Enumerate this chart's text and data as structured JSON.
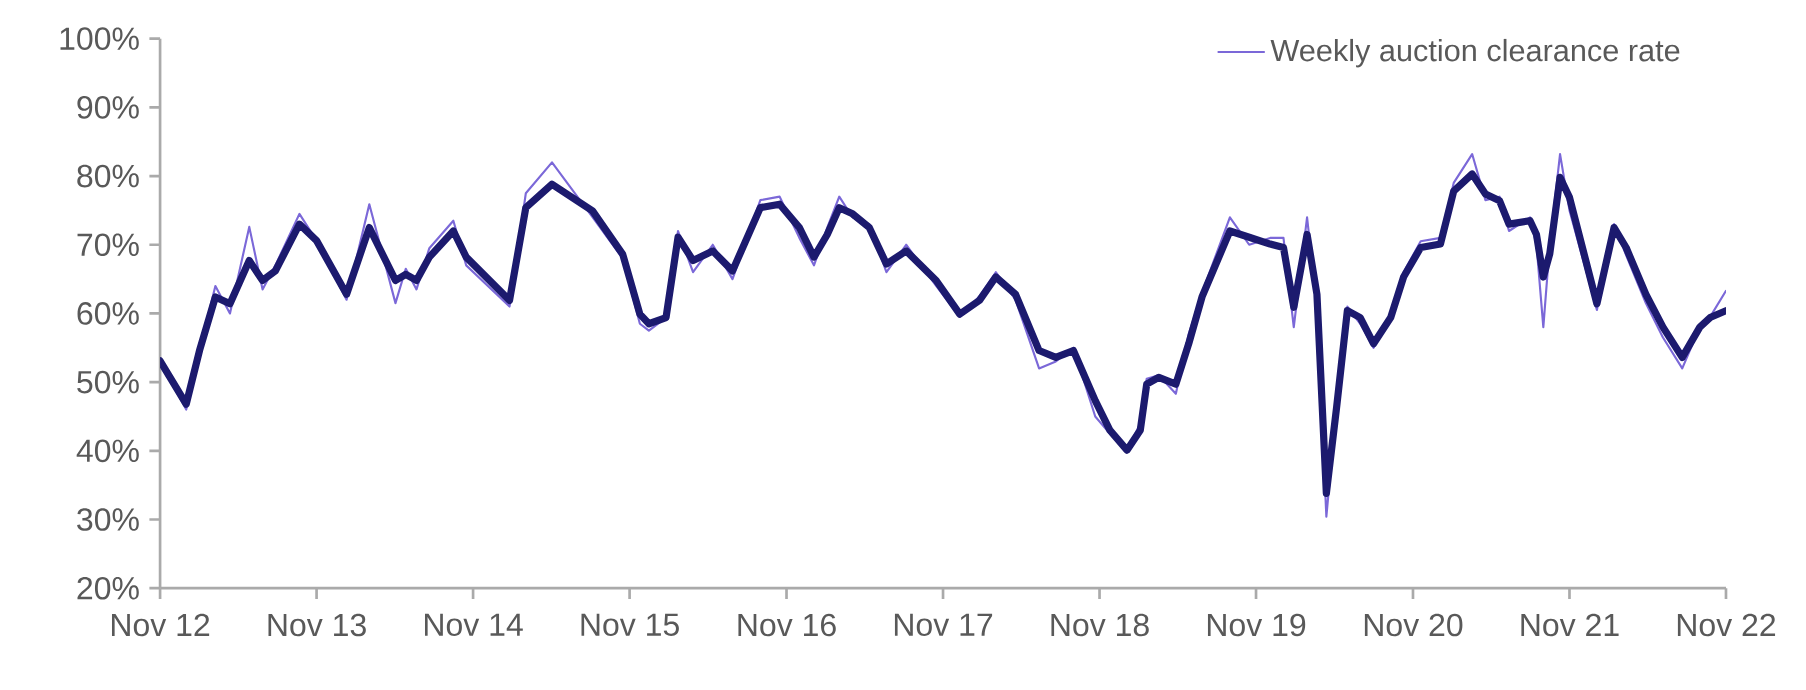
{
  "chart_data": {
    "type": "line",
    "legend": "top right",
    "grid": false,
    "marker": "none",
    "line_style": "solid",
    "xlim": [
      "2012-11-01",
      "2022-11-01"
    ],
    "xticks": [
      {
        "value": "2012-11-01",
        "label": "Nov 12"
      },
      {
        "value": "2013-11-01",
        "label": "Nov 13"
      },
      {
        "value": "2014-11-01",
        "label": "Nov 14"
      },
      {
        "value": "2015-11-01",
        "label": "Nov 15"
      },
      {
        "value": "2016-11-01",
        "label": "Nov 16"
      },
      {
        "value": "2017-11-01",
        "label": "Nov 17"
      },
      {
        "value": "2018-11-01",
        "label": "Nov 18"
      },
      {
        "value": "2019-11-01",
        "label": "Nov 19"
      },
      {
        "value": "2020-11-01",
        "label": "Nov 20"
      },
      {
        "value": "2021-11-01",
        "label": "Nov 21"
      },
      {
        "value": "2022-11-01",
        "label": "Nov 22"
      }
    ],
    "ylim": [
      20,
      100
    ],
    "yticks": [
      {
        "value": 20,
        "label": "20%"
      },
      {
        "value": 30,
        "label": "30%"
      },
      {
        "value": 40,
        "label": "40%"
      },
      {
        "value": 50,
        "label": "50%"
      },
      {
        "value": 60,
        "label": "60%"
      },
      {
        "value": 70,
        "label": "70%"
      },
      {
        "value": 80,
        "label": "80%"
      },
      {
        "value": 90,
        "label": "90%"
      },
      {
        "value": 100,
        "label": "100%"
      }
    ],
    "x": [
      "2012-11-01",
      "2013-01-01",
      "2013-02-01",
      "2013-03-10",
      "2013-04-13",
      "2013-05-28",
      "2013-06-28",
      "2013-07-28",
      "2013-09-22",
      "2013-11-01",
      "2014-01-10",
      "2014-03-04",
      "2014-05-04",
      "2014-05-28",
      "2014-06-22",
      "2014-07-22",
      "2014-09-16",
      "2014-10-16",
      "2015-01-25",
      "2015-03-04",
      "2015-05-04",
      "2015-08-07",
      "2015-10-16",
      "2015-11-25",
      "2015-12-16",
      "2016-01-25",
      "2016-02-22",
      "2016-03-28",
      "2016-05-13",
      "2016-06-28",
      "2016-09-01",
      "2016-10-16",
      "2016-12-01",
      "2017-01-04",
      "2017-02-04",
      "2017-03-04",
      "2017-04-04",
      "2017-05-13",
      "2017-06-22",
      "2017-08-07",
      "2017-10-16",
      "2017-12-10",
      "2018-01-25",
      "2018-03-04",
      "2018-04-19",
      "2018-06-13",
      "2018-07-22",
      "2018-09-01",
      "2018-10-22",
      "2018-11-25",
      "2019-01-04",
      "2019-02-04",
      "2019-02-19",
      "2019-03-19",
      "2019-04-28",
      "2019-05-28",
      "2019-06-28",
      "2019-09-01",
      "2019-10-16",
      "2019-12-04",
      "2020-01-04",
      "2020-01-28",
      "2020-02-28",
      "2020-03-22",
      "2020-04-13",
      "2020-05-07",
      "2020-06-01",
      "2020-07-01",
      "2020-08-01",
      "2020-09-10",
      "2020-10-10",
      "2020-11-19",
      "2021-01-04",
      "2021-02-04",
      "2021-03-19",
      "2021-04-19",
      "2021-05-22",
      "2021-06-13",
      "2021-08-01",
      "2021-08-16",
      "2021-09-01",
      "2021-09-16",
      "2021-10-10",
      "2021-11-01",
      "2022-01-04",
      "2022-02-13",
      "2022-03-13",
      "2022-04-28",
      "2022-06-07",
      "2022-07-22",
      "2022-09-01",
      "2022-09-25",
      "2022-11-01"
    ],
    "series": [
      {
        "name": "Weekly auction clearance rate",
        "color": "#7b68d8",
        "values": [
          53,
          46,
          54.6,
          64,
          60,
          72.6,
          63.5,
          67,
          74.5,
          70.6,
          62,
          75.9,
          61.5,
          66.5,
          63.5,
          69.5,
          73.5,
          67,
          61,
          77.5,
          82,
          74,
          68,
          58.5,
          57.5,
          59.4,
          72,
          66,
          70,
          65,
          76.5,
          77,
          71,
          67,
          72.5,
          77,
          74,
          73,
          66,
          70,
          64,
          59.5,
          62.5,
          66,
          62,
          52,
          53,
          55,
          45,
          42.5,
          40,
          44,
          50.5,
          51,
          48.3,
          57,
          63,
          74,
          70,
          71,
          71,
          58,
          74,
          61,
          30.4,
          47,
          61,
          58.5,
          55,
          60,
          66,
          70.5,
          71,
          79,
          83.2,
          76.5,
          77,
          72,
          74,
          70,
          58,
          70,
          83.2,
          75,
          60.5,
          73,
          68.5,
          61.5,
          56.5,
          52,
          58,
          59.5,
          63.3
        ]
      },
      {
        "color": "#1c1a6e",
        "values": [
          53.1,
          46.8,
          54.6,
          62.4,
          61.4,
          67.7,
          64.8,
          66.2,
          73,
          70.6,
          62.8,
          72.5,
          64.8,
          65.7,
          64.8,
          68.2,
          72,
          68.2,
          61.9,
          75.4,
          78.8,
          74.9,
          68.6,
          59.9,
          58.5,
          59.4,
          71.1,
          67.7,
          69.1,
          66.2,
          75.4,
          75.9,
          72.5,
          68.2,
          71.5,
          75.4,
          74.5,
          72.5,
          67.2,
          69.1,
          64.8,
          59.9,
          61.9,
          65.3,
          62.8,
          54.6,
          53.6,
          54.6,
          47.3,
          43,
          40.1,
          43,
          49.7,
          50.7,
          49.7,
          55.6,
          62.4,
          72,
          71.1,
          70.1,
          69.6,
          60.9,
          71.5,
          62.8,
          33.8,
          46.4,
          60.4,
          59.4,
          55.6,
          59.4,
          65.3,
          69.6,
          70.1,
          77.8,
          80.3,
          77.4,
          76.4,
          73,
          73.5,
          71.5,
          65.3,
          68.7,
          79.8,
          76.9,
          61.4,
          72.5,
          69.6,
          62.8,
          58,
          53.6,
          58,
          59.4,
          60.4
        ]
      }
    ]
  }
}
